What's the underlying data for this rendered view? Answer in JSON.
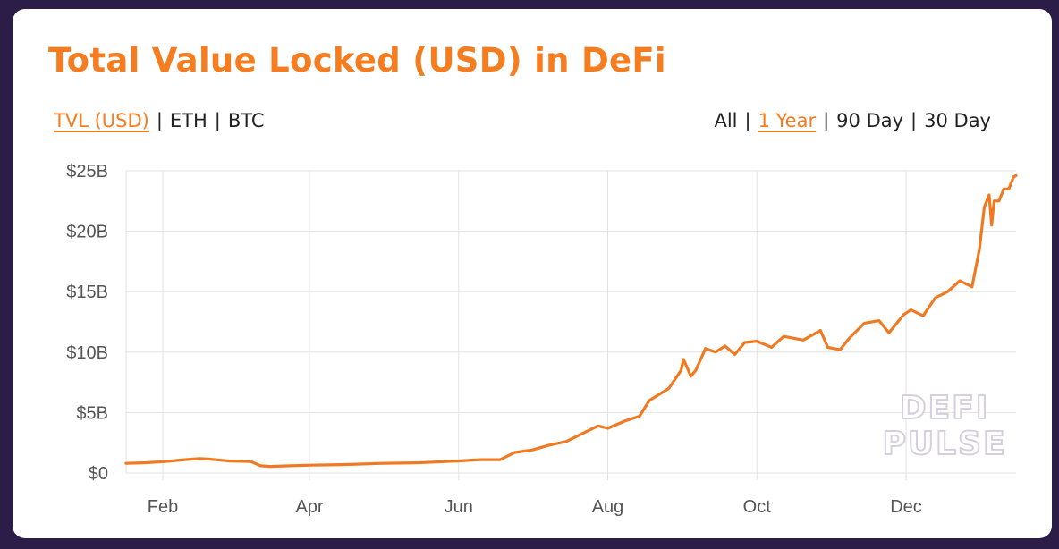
{
  "card": {
    "title": "Total Value Locked (USD) in DeFi",
    "metric_toggles": [
      {
        "label": "TVL (USD)",
        "active": true
      },
      {
        "label": "ETH",
        "active": false
      },
      {
        "label": "BTC",
        "active": false
      }
    ],
    "range_toggles": [
      {
        "label": "All",
        "active": false
      },
      {
        "label": "1 Year",
        "active": true
      },
      {
        "label": "90 Day",
        "active": false
      },
      {
        "label": "30 Day",
        "active": false
      }
    ],
    "separator": "|",
    "watermark": [
      "DEFI",
      "PULSE"
    ]
  },
  "colors": {
    "accent": "#f57c1f",
    "line": "#f07a22",
    "background": "#2b1d47",
    "grid": "#e2e2e2"
  },
  "chart_data": {
    "type": "line",
    "title": "Total Value Locked (USD) in DeFi",
    "xlabel": "",
    "ylabel": "",
    "yunit": "USD billions",
    "ylim": [
      0,
      25
    ],
    "yticks": [
      0,
      5,
      10,
      15,
      20,
      25
    ],
    "ytick_labels": [
      "$0",
      "$5B",
      "$10B",
      "$15B",
      "$20B",
      "$25B"
    ],
    "xlim": [
      "2020-01-17",
      "2021-01-15"
    ],
    "xticks": [
      "2020-02-01",
      "2020-04-01",
      "2020-06-01",
      "2020-08-01",
      "2020-10-01",
      "2020-12-01"
    ],
    "xtick_labels": [
      "Feb",
      "Apr",
      "Jun",
      "Aug",
      "Oct",
      "Dec"
    ],
    "grid": true,
    "legend": "none",
    "series": [
      {
        "name": "",
        "x": [
          "2020-01-17",
          "2020-01-25",
          "2020-02-02",
          "2020-02-10",
          "2020-02-16",
          "2020-02-20",
          "2020-02-28",
          "2020-03-08",
          "2020-03-12",
          "2020-03-16",
          "2020-03-24",
          "2020-04-02",
          "2020-04-16",
          "2020-05-01",
          "2020-05-16",
          "2020-06-01",
          "2020-06-10",
          "2020-06-18",
          "2020-06-24",
          "2020-07-01",
          "2020-07-08",
          "2020-07-15",
          "2020-07-24",
          "2020-07-28",
          "2020-08-01",
          "2020-08-08",
          "2020-08-14",
          "2020-08-18",
          "2020-08-22",
          "2020-08-26",
          "2020-08-31",
          "2020-09-01",
          "2020-09-04",
          "2020-09-06",
          "2020-09-10",
          "2020-09-14",
          "2020-09-18",
          "2020-09-22",
          "2020-09-26",
          "2020-10-01",
          "2020-10-07",
          "2020-10-12",
          "2020-10-20",
          "2020-10-27",
          "2020-10-30",
          "2020-11-04",
          "2020-11-08",
          "2020-11-14",
          "2020-11-20",
          "2020-11-24",
          "2020-11-30",
          "2020-12-03",
          "2020-12-08",
          "2020-12-13",
          "2020-12-18",
          "2020-12-23",
          "2020-12-28",
          "2020-12-31",
          "2021-01-02",
          "2021-01-04",
          "2021-01-05",
          "2021-01-06",
          "2021-01-08",
          "2021-01-10",
          "2021-01-12",
          "2021-01-14",
          "2021-01-15"
        ],
        "y": [
          0.8,
          0.85,
          0.95,
          1.1,
          1.2,
          1.15,
          1.0,
          0.95,
          0.6,
          0.55,
          0.6,
          0.65,
          0.7,
          0.8,
          0.85,
          1.0,
          1.1,
          1.1,
          1.7,
          1.9,
          2.3,
          2.6,
          3.5,
          3.9,
          3.7,
          4.3,
          4.7,
          6.0,
          6.5,
          7.0,
          8.5,
          9.4,
          8.0,
          8.5,
          10.3,
          10.0,
          10.5,
          9.8,
          10.8,
          10.9,
          10.4,
          11.3,
          11.0,
          11.8,
          10.4,
          10.2,
          11.2,
          12.4,
          12.6,
          11.6,
          13.1,
          13.5,
          13.0,
          14.5,
          15.0,
          15.9,
          15.4,
          18.5,
          22.0,
          23.0,
          20.5,
          22.5,
          22.5,
          23.5,
          23.5,
          24.5,
          24.6
        ]
      }
    ]
  }
}
